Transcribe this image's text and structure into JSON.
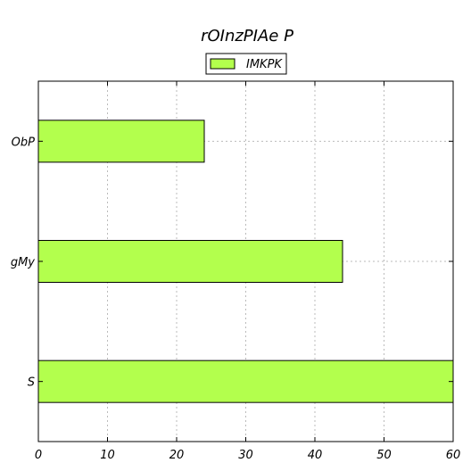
{
  "chart_data": {
    "type": "bar",
    "orientation": "horizontal",
    "title": "rOInzPIAe P",
    "xlabel": "",
    "ylabel": "",
    "categories": [
      "ObP",
      "gMy",
      "S"
    ],
    "series": [
      {
        "name": "IMKPK",
        "values": [
          24,
          44,
          60
        ],
        "color": "#b3ff4d"
      }
    ],
    "xlim": [
      0,
      60
    ],
    "xticks": [
      0,
      10,
      20,
      30,
      40,
      50,
      60
    ],
    "grid": true,
    "legend_position": "top-center"
  }
}
